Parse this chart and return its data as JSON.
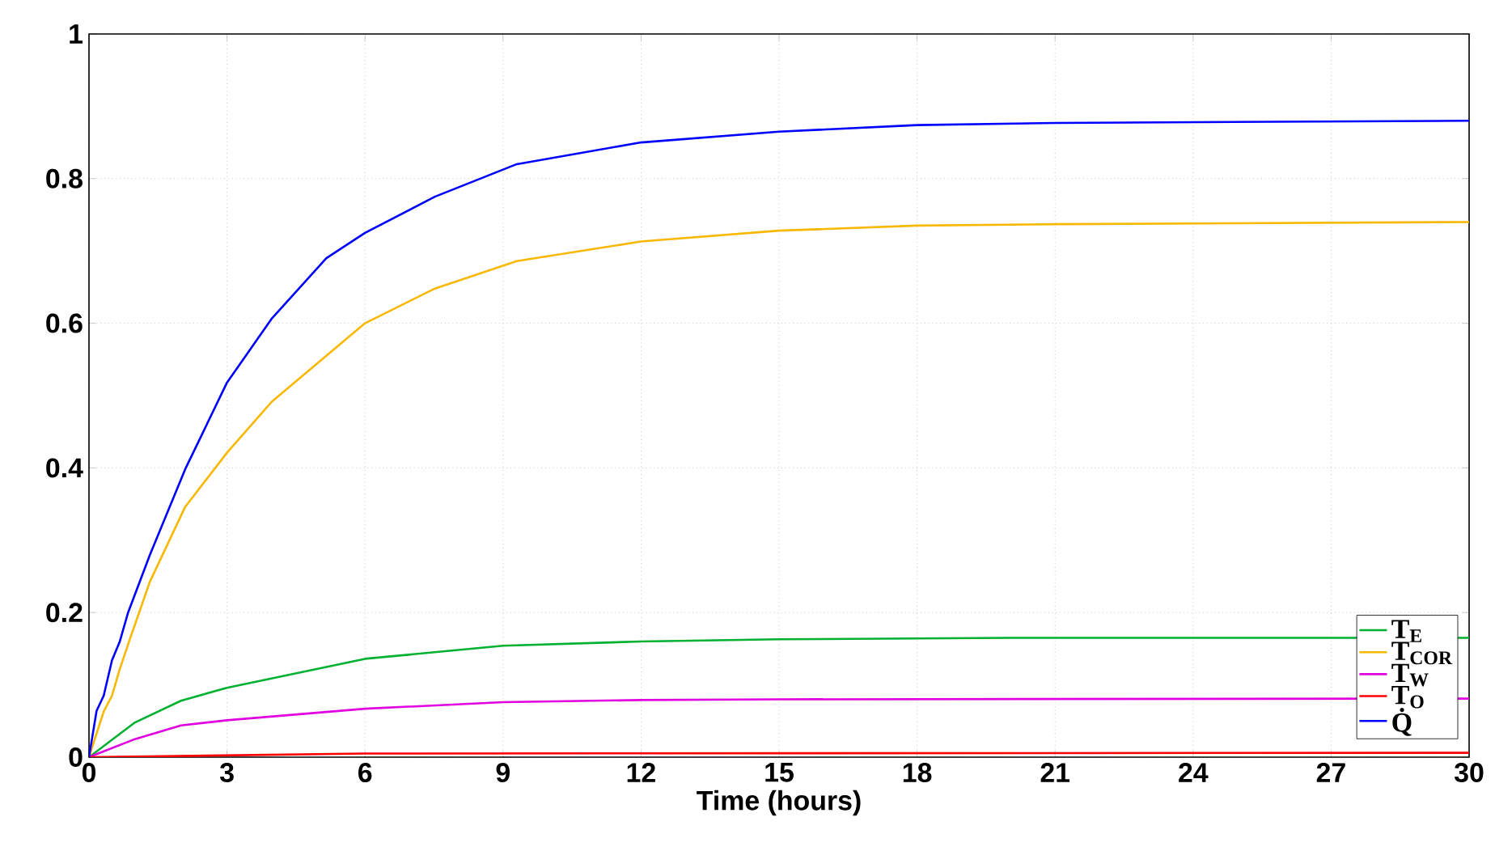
{
  "chart_data": {
    "type": "line",
    "xlabel": "Time (hours)",
    "xlim": [
      0,
      30
    ],
    "ylim": [
      0,
      1
    ],
    "xticks": [
      0,
      3,
      6,
      9,
      12,
      15,
      18,
      21,
      24,
      27,
      30
    ],
    "yticks": [
      0,
      0.2,
      0.4,
      0.6,
      0.8,
      1
    ],
    "grid": true,
    "legend": "bottom right",
    "line_style": "solid",
    "marker": "none",
    "series": [
      {
        "name": "T$_{E}$",
        "color": "#00b030",
        "x": [
          0,
          1,
          2,
          3,
          6,
          9,
          12,
          15,
          20,
          30
        ],
        "values": [
          0,
          0.048,
          0.078,
          0.096,
          0.136,
          0.154,
          0.16,
          0.163,
          0.165,
          0.165
        ]
      },
      {
        "name": "T$_{COR}$",
        "color": "#f8b800",
        "x": [
          0,
          0.32,
          0.5,
          0.67,
          0.91,
          1.32,
          2.09,
          3,
          3.98,
          5.16,
          6,
          7.52,
          9.3,
          12,
          15,
          18,
          21,
          30
        ],
        "values": [
          0,
          0.063,
          0.085,
          0.122,
          0.167,
          0.242,
          0.346,
          0.421,
          0.492,
          0.555,
          0.6,
          0.648,
          0.686,
          0.713,
          0.728,
          0.735,
          0.737,
          0.74
        ]
      },
      {
        "name": "T$_{W}$",
        "color": "#e000e0",
        "x": [
          0,
          1,
          2,
          3,
          6,
          9,
          12,
          15,
          30
        ],
        "values": [
          0,
          0.025,
          0.044,
          0.051,
          0.067,
          0.076,
          0.079,
          0.08,
          0.081
        ]
      },
      {
        "name": "T$_{O}$",
        "color": "#ff0000",
        "x": [
          0,
          6,
          30
        ],
        "values": [
          0,
          0.005,
          0.006
        ]
      },
      {
        "name": "Q̇",
        "color": "#0000ff",
        "x": [
          0,
          0.165,
          0.32,
          0.5,
          0.67,
          0.85,
          1.32,
          2.09,
          3,
          3.98,
          5.16,
          6,
          7.52,
          9.3,
          12,
          15,
          18,
          21,
          30
        ],
        "values": [
          0,
          0.064,
          0.085,
          0.134,
          0.16,
          0.2,
          0.279,
          0.398,
          0.518,
          0.607,
          0.69,
          0.725,
          0.775,
          0.82,
          0.85,
          0.865,
          0.874,
          0.877,
          0.88
        ]
      }
    ]
  }
}
